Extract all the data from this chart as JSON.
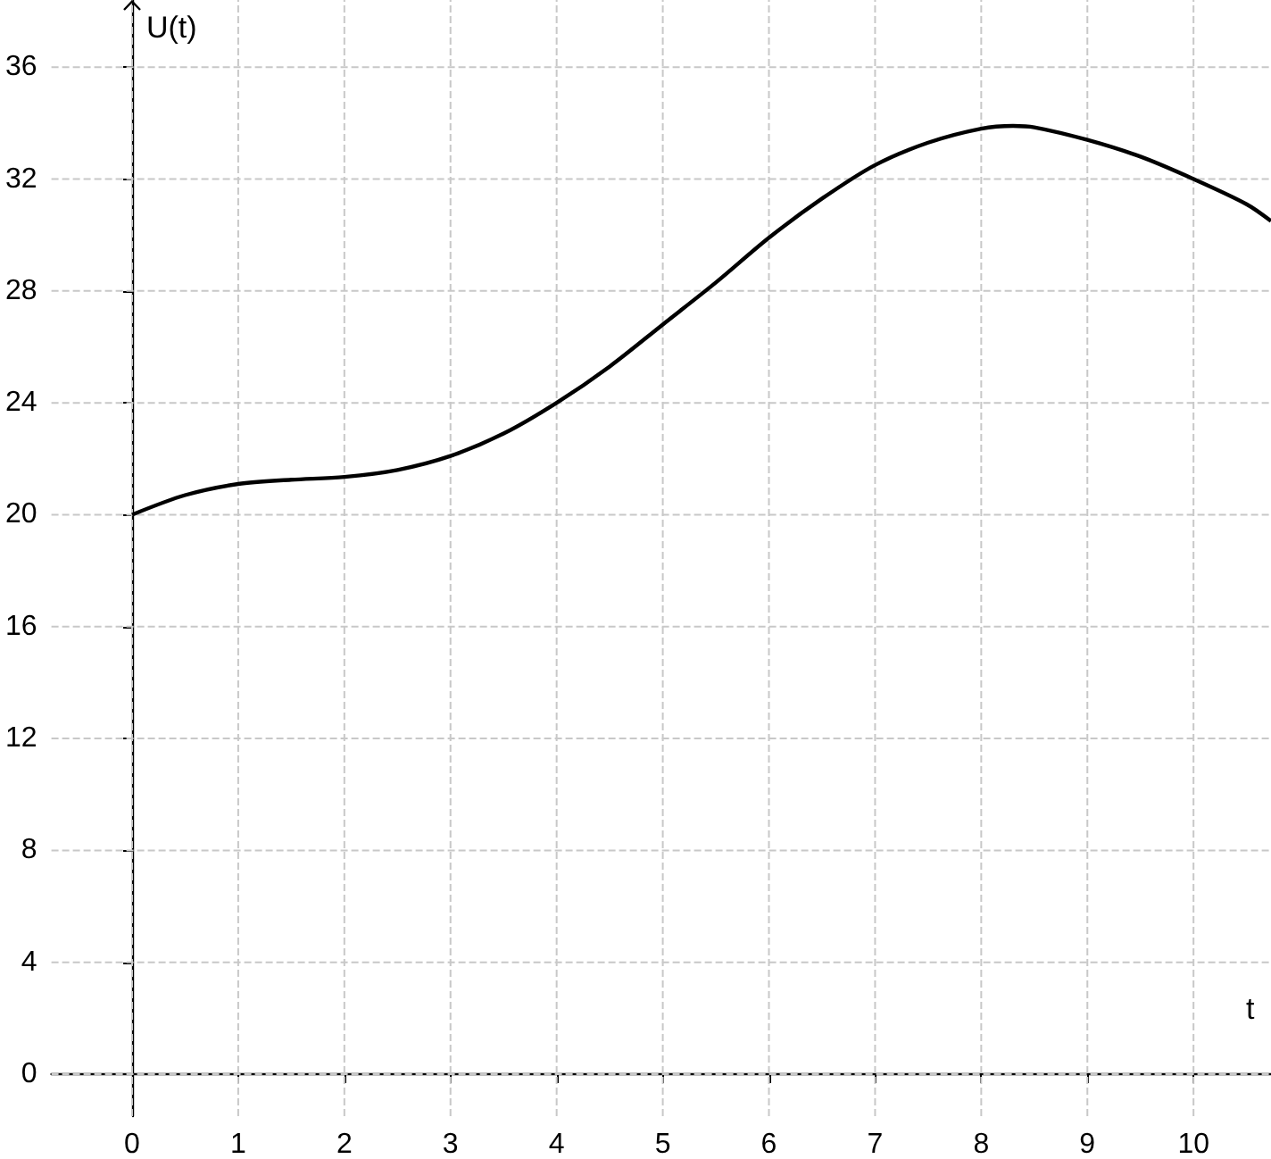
{
  "chart_data": {
    "type": "line",
    "xlabel": "t",
    "ylabel": "U(t)",
    "x": [
      0,
      0.5,
      1,
      1.5,
      2,
      2.5,
      3,
      3.5,
      4,
      4.5,
      5,
      5.5,
      6,
      6.5,
      7,
      7.5,
      8,
      8.3,
      8.5,
      9,
      9.5,
      10,
      10.5,
      10.73
    ],
    "series": [
      {
        "color": "#000000",
        "values": [
          20,
          20.7,
          21.1,
          21.25,
          21.35,
          21.6,
          22.1,
          22.9,
          24,
          25.3,
          26.8,
          28.3,
          29.9,
          31.3,
          32.5,
          33.3,
          33.8,
          33.9,
          33.85,
          33.4,
          32.8,
          32,
          31.1,
          30.5
        ]
      }
    ],
    "xlim": [
      -0.76,
      10.73
    ],
    "ylim": [
      -1.5,
      38.4
    ],
    "xticks": [
      0,
      1,
      2,
      3,
      4,
      5,
      6,
      7,
      8,
      9,
      10
    ],
    "yticks": [
      0,
      4,
      8,
      12,
      16,
      20,
      24,
      28,
      32,
      36
    ],
    "grid": true,
    "marker": "none",
    "line_style": "solid"
  }
}
